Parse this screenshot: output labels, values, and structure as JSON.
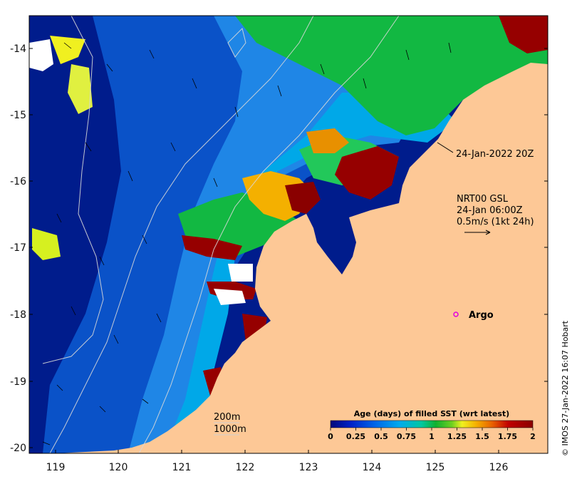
{
  "map": {
    "x_ticks": [
      "119",
      "120",
      "121",
      "122",
      "123",
      "124",
      "125",
      "126"
    ],
    "y_ticks": [
      "-14",
      "-15",
      "-16",
      "-17",
      "-18",
      "-19",
      "-20"
    ],
    "x_range": [
      118.6,
      126.9
    ],
    "y_range": [
      -20.15,
      -13.55
    ]
  },
  "annotations": {
    "timestamp": "24-Jan-2022 20Z",
    "model_line1": "NRT00 GSL",
    "model_line2": "24-Jan 06:00Z",
    "model_line3": "0.5m/s (1kt 24h)",
    "argo_label": "Argo",
    "contour_200": "200m",
    "contour_1000": "1000m"
  },
  "colorbar": {
    "title": "Age (days) of filled SST (wrt latest)",
    "ticks": [
      "0",
      "0.25",
      "0.5",
      "0.75",
      "1",
      "1.25",
      "1.5",
      "1.75",
      "2"
    ],
    "colors": [
      "#00087a",
      "#0022c8",
      "#0066e8",
      "#00aaee",
      "#00c8a0",
      "#10b030",
      "#6ed020",
      "#f0f020",
      "#f4b000",
      "#e86000",
      "#c00000",
      "#8a0000"
    ]
  },
  "credit": "© IMOS 27-Jan-2022 16:07 Hobart",
  "colors": {
    "land": "#fdc896",
    "deep_ocean": "#001c8c",
    "mid_ocean": "#0a52c8",
    "shelf": "#1f86e6",
    "recent": "#12b842",
    "old": "#960000"
  }
}
